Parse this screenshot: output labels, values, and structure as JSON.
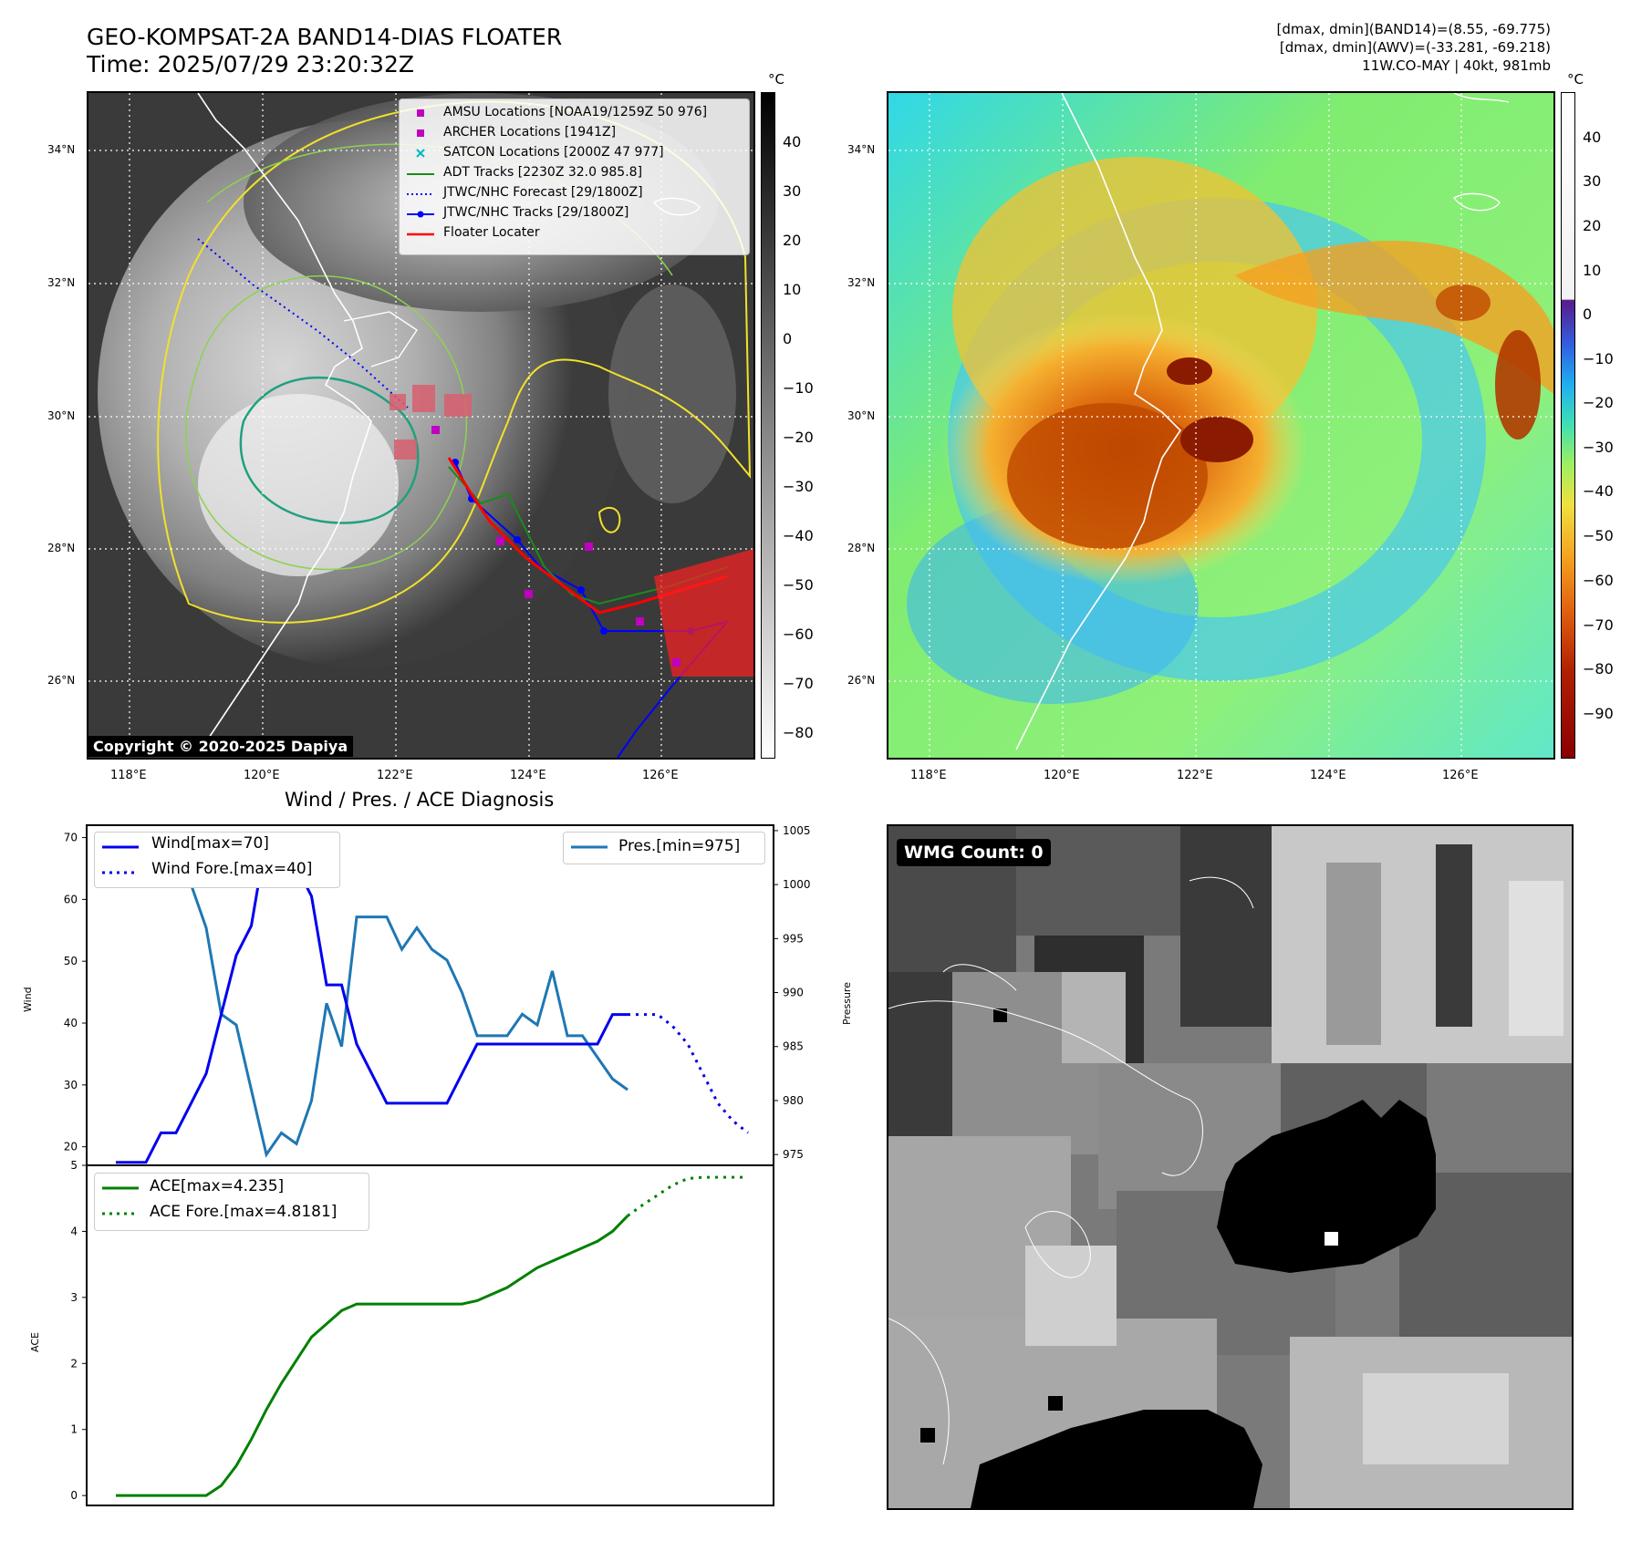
{
  "header": {
    "title_line1": "GEO-KOMPSAT-2A BAND14-DIAS FLOATER",
    "title_line2": "Time: 2025/07/29 23:20:32Z",
    "right_line1": "[dmax, dmin](BAND14)=(8.55, -69.775)",
    "right_line2": "[dmax, dmin](AWV)=(-33.281, -69.218)",
    "right_line3": "11W.CO-MAY | 40kt, 981mb"
  },
  "unit_celsius": "°C",
  "ir_panel": {
    "lat_labels": [
      "34°N",
      "32°N",
      "30°N",
      "28°N",
      "26°N"
    ],
    "lon_labels": [
      "118°E",
      "120°E",
      "122°E",
      "124°E",
      "126°E"
    ],
    "colorbar_ticks": [
      "40",
      "30",
      "20",
      "10",
      "0",
      "−10",
      "−20",
      "−30",
      "−40",
      "−50",
      "−60",
      "−70",
      "−80"
    ],
    "legend": [
      {
        "label": "AMSU Locations [NOAA19/1259Z 50 976]",
        "color": "#c000c0",
        "marker": "square"
      },
      {
        "label": "ARCHER Locations [1941Z]",
        "color": "#c000c0",
        "marker": "square"
      },
      {
        "label": "SATCON Locations [2000Z 47 977]",
        "color": "#00b8c8",
        "marker": "x"
      },
      {
        "label": "ADT Tracks [2230Z 32.0 985.8]",
        "color": "#1a8a1a",
        "marker": "line"
      },
      {
        "label": "JTWC/NHC Forecast [29/1800Z]",
        "color": "#0000ff",
        "marker": "dotted"
      },
      {
        "label": "JTWC/NHC Tracks [29/1800Z]",
        "color": "#0000ff",
        "marker": "line-dot"
      },
      {
        "label": "Floater Locater",
        "color": "#ff0000",
        "marker": "line"
      }
    ],
    "copyright": "Copyright © 2020-2025 Dapiya"
  },
  "awv_panel": {
    "lat_labels": [
      "34°N",
      "32°N",
      "30°N",
      "28°N",
      "26°N"
    ],
    "lon_labels": [
      "118°E",
      "120°E",
      "122°E",
      "124°E",
      "126°E"
    ],
    "colorbar_ticks": [
      "40",
      "30",
      "20",
      "10",
      "0",
      "−10",
      "−20",
      "−30",
      "−40",
      "−50",
      "−60",
      "−70",
      "−80",
      "−90"
    ]
  },
  "wmg_panel": {
    "label": "WMG Count: 0"
  },
  "diagnosis": {
    "title": "Wind / Pres. / ACE Diagnosis",
    "wind_ylabel": "Wind",
    "pressure_ylabel": "Pressure",
    "ace_ylabel": "ACE",
    "wind_ticks": [
      "70",
      "60",
      "50",
      "40",
      "30",
      "20"
    ],
    "pressure_ticks": [
      "1005",
      "1000",
      "995",
      "990",
      "985",
      "980",
      "975"
    ],
    "ace_ticks": [
      "5",
      "4",
      "3",
      "2",
      "1",
      "0"
    ],
    "legend_wind": "Wind[max=70]",
    "legend_wind_fore": "Wind Fore.[max=40]",
    "legend_pres": "Pres.[min=975]",
    "legend_ace": "ACE[max=4.235]",
    "legend_ace_fore": "ACE Fore.[max=4.8181]",
    "colors": {
      "wind": "#0000ee",
      "pressure": "#1f77b4",
      "ace": "#008000"
    }
  },
  "chart_data": [
    {
      "type": "line",
      "title": "Wind / Pres. / ACE Diagnosis",
      "ylabel": "Wind",
      "ylim": [
        17,
        72
      ],
      "series": [
        {
          "name": "Wind[max=70]",
          "values": [
            15,
            15,
            15,
            20,
            20,
            25,
            30,
            40,
            50,
            55,
            70,
            65,
            65,
            60,
            45,
            45,
            35,
            30,
            25,
            25,
            25,
            25,
            25,
            30,
            35,
            35,
            35,
            35,
            35,
            35,
            35,
            35,
            35,
            40,
            40
          ]
        },
        {
          "name": "Wind Fore.[max=40]",
          "values": [
            40,
            40,
            40,
            38,
            35,
            30,
            25,
            22,
            20
          ],
          "start_index": 34
        }
      ],
      "y2label": "Pressure",
      "y2lim": [
        974,
        1005.5
      ],
      "series_secondary": [
        {
          "name": "Pres.[min=975]",
          "values": [
            1004,
            1004,
            1004,
            1003,
            1002,
            1000,
            996,
            988,
            987,
            981,
            975,
            977,
            976,
            980,
            989,
            985,
            997,
            997,
            997,
            994,
            996,
            994,
            993,
            990,
            986,
            986,
            986,
            988,
            987,
            992,
            986,
            986,
            984,
            982,
            981
          ]
        }
      ]
    },
    {
      "type": "line",
      "ylabel": "ACE",
      "ylim": [
        -0.15,
        5
      ],
      "series": [
        {
          "name": "ACE[max=4.235]",
          "values": [
            0,
            0,
            0,
            0,
            0,
            0,
            0,
            0.15,
            0.45,
            0.85,
            1.3,
            1.7,
            2.05,
            2.4,
            2.6,
            2.8,
            2.9,
            2.9,
            2.9,
            2.9,
            2.9,
            2.9,
            2.9,
            2.9,
            2.95,
            3.05,
            3.15,
            3.3,
            3.45,
            3.55,
            3.65,
            3.75,
            3.85,
            4.0,
            4.235
          ]
        },
        {
          "name": "ACE Fore.[max=4.8181]",
          "values": [
            4.235,
            4.4,
            4.55,
            4.7,
            4.8,
            4.8181,
            4.8181,
            4.8181,
            4.8181
          ],
          "start_index": 34
        }
      ]
    }
  ]
}
